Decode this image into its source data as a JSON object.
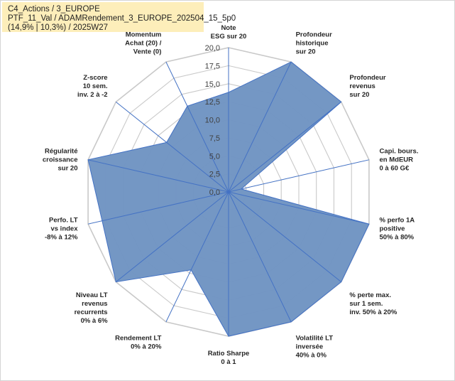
{
  "header": {
    "line1": "C4_Actions / 3_EUROPE",
    "line2": "PTF_11_Val / ADAMRendement_3_EUROPE_202504_15_5p0",
    "line3": "(14,9% | 10,3%) / 2025W27"
  },
  "chart_data": {
    "type": "radar",
    "title": "",
    "rlim": [
      0,
      20
    ],
    "rticks": [
      "0,0",
      "2,5",
      "5,0",
      "7,5",
      "10,0",
      "12,5",
      "15,0",
      "17,5",
      "20,0"
    ],
    "grid": true,
    "fill_color": "#7094c2",
    "line_color": "#4472c4",
    "axes": [
      {
        "label": [
          "Note",
          "ESG sur 20"
        ],
        "value": 13.8
      },
      {
        "label": [
          "Profondeur",
          "historique",
          "sur 20"
        ],
        "value": 20
      },
      {
        "label": [
          "Profondeur",
          "revenus",
          "sur 20"
        ],
        "value": 20
      },
      {
        "label": [
          "Capi. bours.",
          "en MdEUR",
          "0 à 60 G€"
        ],
        "value": 1.8
      },
      {
        "label": [
          "% perfo 1A",
          "positive",
          "50% à 80%"
        ],
        "value": 20
      },
      {
        "label": [
          "% perte max.",
          "sur 1 sem.",
          "inv. 50% à 20%"
        ],
        "value": 20
      },
      {
        "label": [
          "Volatilité LT",
          "inversée",
          "40% à 0%"
        ],
        "value": 20
      },
      {
        "label": [
          "Ratio Sharpe",
          "0 à 1"
        ],
        "value": 20
      },
      {
        "label": [
          "Rendement LT",
          "0% à 20%"
        ],
        "value": 12
      },
      {
        "label": [
          "Niveau LT",
          "revenus",
          "recurrents",
          "0% à 6%"
        ],
        "value": 20
      },
      {
        "label": [
          "Perfo. LT",
          "vs index",
          "-8% à 12%"
        ],
        "value": 18
      },
      {
        "label": [
          "Régularité",
          "croissance",
          "sur 20"
        ],
        "value": 20
      },
      {
        "label": [
          "Z-score",
          "10 sem.",
          "inv. 2 à -2"
        ],
        "value": 11
      },
      {
        "label": [
          "Momentum",
          "Achat (20) /",
          "Vente (0)"
        ],
        "value": 13.2
      }
    ]
  }
}
